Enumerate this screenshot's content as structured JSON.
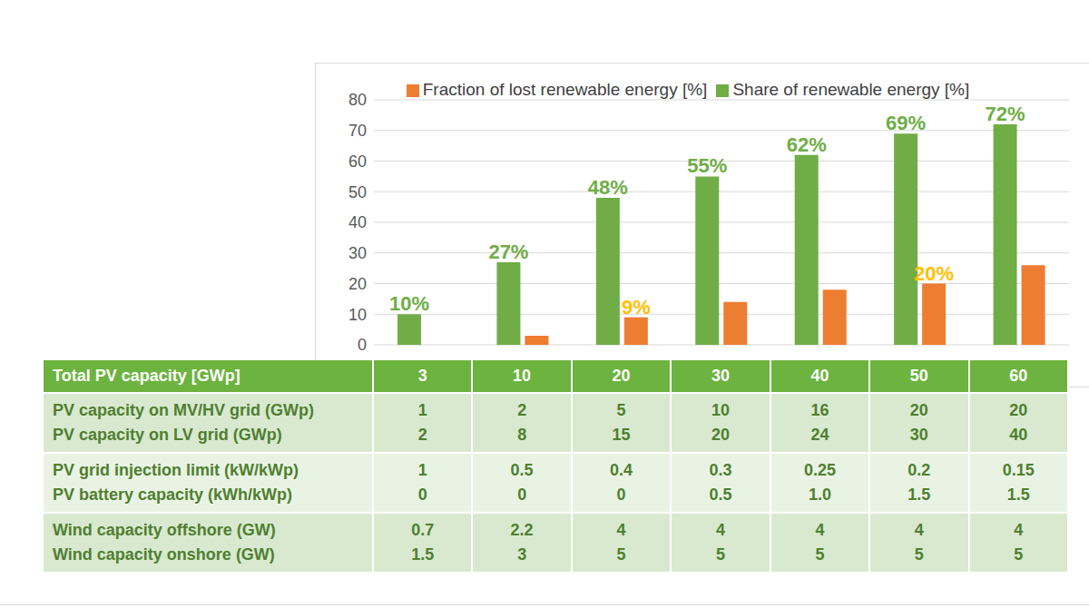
{
  "chart_data": {
    "type": "bar",
    "categories": [
      null,
      null,
      null,
      null,
      null,
      null,
      null
    ],
    "ylim": [
      0,
      80
    ],
    "yticks": [
      0,
      10,
      20,
      30,
      40,
      50,
      60,
      70,
      80
    ],
    "grid": true,
    "legend": "top",
    "data_labels": true,
    "tick_labels": "y",
    "series": [
      {
        "name": "Share of renewable energy [%]",
        "color": "#70ad47",
        "values": [
          10,
          27,
          48,
          55,
          62,
          69,
          72
        ],
        "value_labels": [
          "10%",
          "27%",
          "48%",
          "55%",
          "62%",
          "69%",
          "72%"
        ]
      },
      {
        "name": "Fraction of lost renewable energy [%]",
        "color": "#ed7d31",
        "values": [
          null,
          3,
          9,
          14,
          18,
          20,
          26
        ],
        "value_labels": [
          null,
          null,
          "9%",
          null,
          null,
          "20%",
          null
        ]
      }
    ]
  },
  "table": {
    "header": [
      "Total PV capacity [GWp]",
      "3",
      "10",
      "20",
      "30",
      "40",
      "50",
      "60"
    ],
    "groups": [
      [
        {
          "label": "PV capacity on MV/HV grid (GWp)",
          "values": [
            "1",
            "2",
            "5",
            "10",
            "16",
            "20",
            "20"
          ]
        },
        {
          "label": "PV capacity on LV grid (GWp)",
          "values": [
            "2",
            "8",
            "15",
            "20",
            "24",
            "30",
            "40"
          ]
        }
      ],
      [
        {
          "label": "PV grid injection limit (kW/kWp)",
          "values": [
            "1",
            "0.5",
            "0.4",
            "0.3",
            "0.25",
            "0.2",
            "0.15"
          ]
        },
        {
          "label": "PV battery capacity (kWh/kWp)",
          "values": [
            "0",
            "0",
            "0",
            "0.5",
            "1.0",
            "1.5",
            "1.5"
          ]
        }
      ],
      [
        {
          "label": "Wind capacity offshore (GW)",
          "values": [
            "0.7",
            "2.2",
            "4",
            "4",
            "4",
            "4",
            "4"
          ]
        },
        {
          "label": "Wind capacity onshore (GW)",
          "values": [
            "1.5",
            "3",
            "5",
            "5",
            "5",
            "5",
            "5"
          ]
        }
      ]
    ]
  }
}
